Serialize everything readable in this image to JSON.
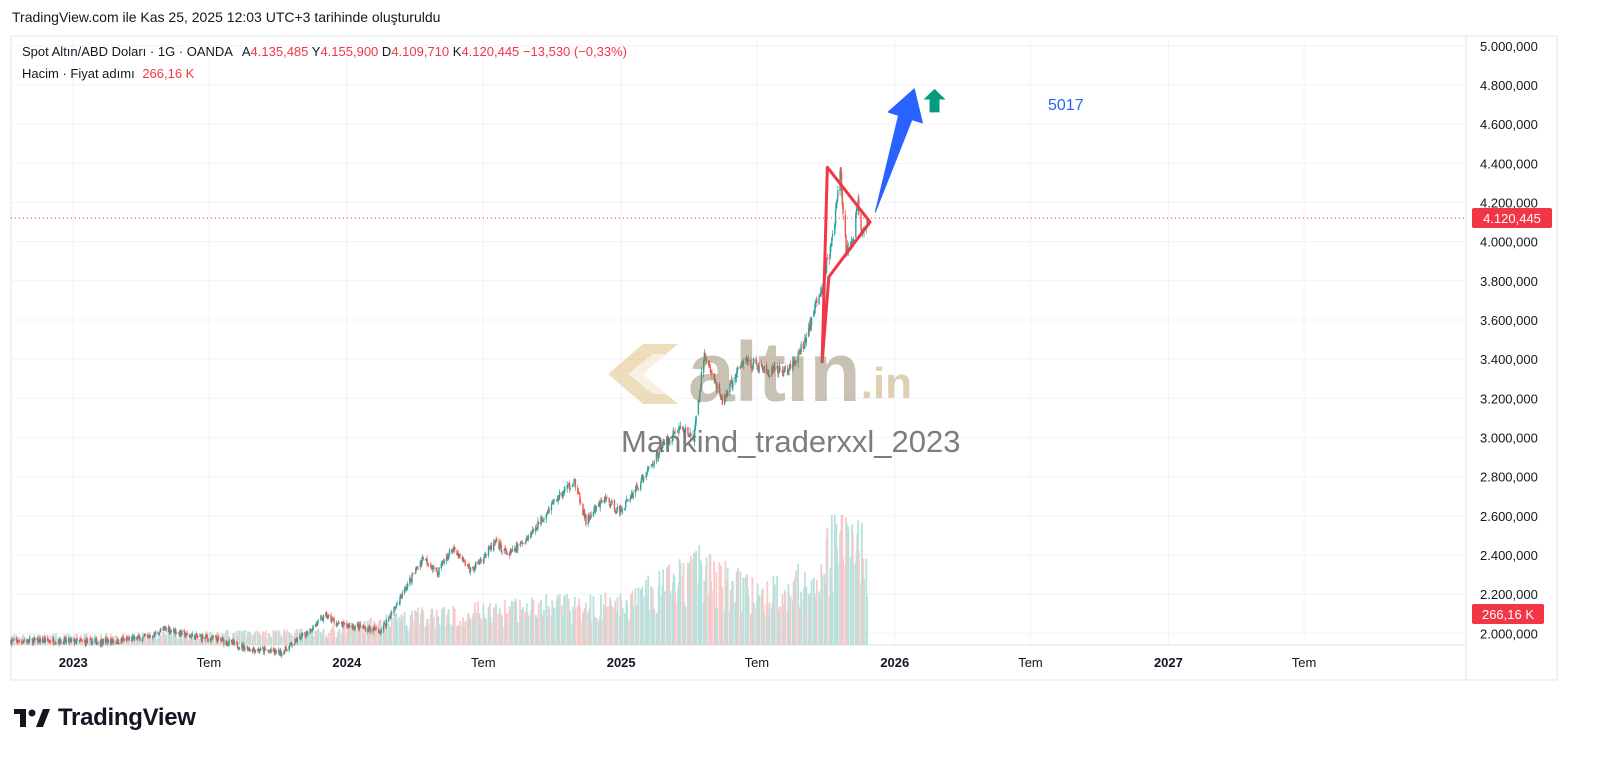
{
  "header": {
    "caption": "TradingView.com ile Kas 25, 2025 12:03 UTC+3 tarihinde oluşturuldu"
  },
  "legend": {
    "symbol": "Spot Altın/ABD Doları · 1G · OANDA",
    "open_label": "A",
    "open": "4.135,485",
    "high_label": "Y",
    "high": "4.155,900",
    "low_label": "D",
    "low": "4.109,710",
    "close_label": "K",
    "close": "4.120,445",
    "change": "−13,530 (−0,33%)",
    "volume_label": "Hacim · Fiyat adımı",
    "volume_value": "266,16 K"
  },
  "annotation": {
    "target_text": "5017"
  },
  "watermark": {
    "brand_main": "altın",
    "brand_suffix": ".in",
    "author": "Mankind_traderxxl_2023"
  },
  "footer": {
    "brand": "TradingView"
  },
  "colors": {
    "up": "#26a69a",
    "down": "#ef5350",
    "price_line": "#f23645",
    "triangle": "#f23645",
    "arrow_blue": "#2962ff",
    "arrow_green": "#089981",
    "volume_up": "#b9e1dc",
    "volume_down": "#f7c9c9"
  },
  "chart_data": {
    "type": "candlestick",
    "title": "Spot Altın/ABD Doları · 1G · OANDA",
    "x_ticks": [
      {
        "date": "2023-01-01",
        "label": "2023"
      },
      {
        "date": "2023-07-01",
        "label": "Tem"
      },
      {
        "date": "2024-01-01",
        "label": "2024"
      },
      {
        "date": "2024-07-01",
        "label": "Tem"
      },
      {
        "date": "2025-01-01",
        "label": "2025"
      },
      {
        "date": "2025-07-01",
        "label": "Tem"
      },
      {
        "date": "2026-01-01",
        "label": "2026"
      },
      {
        "date": "2026-07-01",
        "label": "Tem"
      },
      {
        "date": "2027-01-01",
        "label": "2027"
      },
      {
        "date": "2027-07-01",
        "label": "Tem"
      }
    ],
    "xlim": [
      "2022-10-10",
      "2028-02-02"
    ],
    "y_ticks": [
      {
        "value": 2000000,
        "label": "2.000,000"
      },
      {
        "value": 2200000,
        "label": "2.200,000"
      },
      {
        "value": 2400000,
        "label": "2.400,000"
      },
      {
        "value": 2600000,
        "label": "2.600,000"
      },
      {
        "value": 2800000,
        "label": "2.800,000"
      },
      {
        "value": 3000000,
        "label": "3.000,000"
      },
      {
        "value": 3200000,
        "label": "3.200,000"
      },
      {
        "value": 3400000,
        "label": "3.400,000"
      },
      {
        "value": 3600000,
        "label": "3.600,000"
      },
      {
        "value": 3800000,
        "label": "3.800,000"
      },
      {
        "value": 4000000,
        "label": "4.000,000"
      },
      {
        "value": 4200000,
        "label": "4.200,000"
      },
      {
        "value": 4400000,
        "label": "4.400,000"
      },
      {
        "value": 4600000,
        "label": "4.600,000"
      },
      {
        "value": 4800000,
        "label": "4.800,000"
      },
      {
        "value": 5000000,
        "label": "5.000,000"
      }
    ],
    "ylim": [
      1940000,
      5050000
    ],
    "grid": true,
    "current_price": {
      "value": 4120445,
      "label": "4.120,445"
    },
    "volume_label": {
      "label": "266,16 K"
    },
    "volume_max": 1000,
    "close_path": [
      {
        "date": "2022-10-10",
        "close": 1960000
      },
      {
        "date": "2022-12-01",
        "close": 1962000
      },
      {
        "date": "2023-01-15",
        "close": 1955000
      },
      {
        "date": "2023-03-01",
        "close": 1960000
      },
      {
        "date": "2023-04-15",
        "close": 1985000
      },
      {
        "date": "2023-05-05",
        "close": 2025000
      },
      {
        "date": "2023-06-01",
        "close": 1990000
      },
      {
        "date": "2023-07-15",
        "close": 1965000
      },
      {
        "date": "2023-08-20",
        "close": 1925000
      },
      {
        "date": "2023-10-05",
        "close": 1900000
      },
      {
        "date": "2023-11-01",
        "close": 1980000
      },
      {
        "date": "2023-12-04",
        "close": 2090000
      },
      {
        "date": "2023-12-20",
        "close": 2045000
      },
      {
        "date": "2024-01-20",
        "close": 2030000
      },
      {
        "date": "2024-02-15",
        "close": 2010000
      },
      {
        "date": "2024-03-05",
        "close": 2130000
      },
      {
        "date": "2024-04-12",
        "close": 2390000
      },
      {
        "date": "2024-05-01",
        "close": 2310000
      },
      {
        "date": "2024-05-20",
        "close": 2430000
      },
      {
        "date": "2024-06-15",
        "close": 2320000
      },
      {
        "date": "2024-07-17",
        "close": 2460000
      },
      {
        "date": "2024-08-05",
        "close": 2400000
      },
      {
        "date": "2024-09-01",
        "close": 2500000
      },
      {
        "date": "2024-10-01",
        "close": 2660000
      },
      {
        "date": "2024-10-30",
        "close": 2780000
      },
      {
        "date": "2024-11-15",
        "close": 2570000
      },
      {
        "date": "2024-12-10",
        "close": 2690000
      },
      {
        "date": "2024-12-30",
        "close": 2620000
      },
      {
        "date": "2025-02-01",
        "close": 2800000
      },
      {
        "date": "2025-02-24",
        "close": 2950000
      },
      {
        "date": "2025-03-20",
        "close": 3050000
      },
      {
        "date": "2025-04-08",
        "close": 3000000
      },
      {
        "date": "2025-04-22",
        "close": 3430000
      },
      {
        "date": "2025-05-15",
        "close": 3180000
      },
      {
        "date": "2025-06-15",
        "close": 3400000
      },
      {
        "date": "2025-07-15",
        "close": 3330000
      },
      {
        "date": "2025-08-15",
        "close": 3350000
      },
      {
        "date": "2025-09-01",
        "close": 3470000
      },
      {
        "date": "2025-09-25",
        "close": 3760000
      },
      {
        "date": "2025-10-10",
        "close": 4010000
      },
      {
        "date": "2025-10-20",
        "close": 4360000
      },
      {
        "date": "2025-10-28",
        "close": 3950000
      },
      {
        "date": "2025-11-05",
        "close": 3980000
      },
      {
        "date": "2025-11-13",
        "close": 4200000
      },
      {
        "date": "2025-11-18",
        "close": 4050000
      },
      {
        "date": "2025-11-25",
        "close": 4120445
      }
    ],
    "volume_path": [
      {
        "date": "2022-10-10",
        "v": 70
      },
      {
        "date": "2023-03-01",
        "v": 80
      },
      {
        "date": "2023-12-01",
        "v": 110
      },
      {
        "date": "2024-04-01",
        "v": 240
      },
      {
        "date": "2024-10-01",
        "v": 330
      },
      {
        "date": "2025-01-01",
        "v": 340
      },
      {
        "date": "2025-04-15",
        "v": 650
      },
      {
        "date": "2025-07-01",
        "v": 420
      },
      {
        "date": "2025-09-15",
        "v": 560
      },
      {
        "date": "2025-10-20",
        "v": 1000
      },
      {
        "date": "2025-11-25",
        "v": 730
      }
    ],
    "drawings": {
      "triangle": [
        {
          "date": "2025-09-26",
          "price": 3380000
        },
        {
          "date": "2025-10-03",
          "price": 4380000
        },
        {
          "date": "2025-11-29",
          "price": 4100000
        },
        {
          "date": "2025-10-05",
          "price": 3820000
        },
        {
          "date": "2025-09-26",
          "price": 3380000
        }
      ],
      "blue_arrow": {
        "tail": {
          "date": "2025-12-06",
          "price": 4150000
        },
        "head": {
          "date": "2026-01-27",
          "price": 4780000
        }
      },
      "green_arrow": {
        "date": "2026-02-23",
        "price_top": 4780000,
        "price_base": 4660000
      }
    }
  }
}
